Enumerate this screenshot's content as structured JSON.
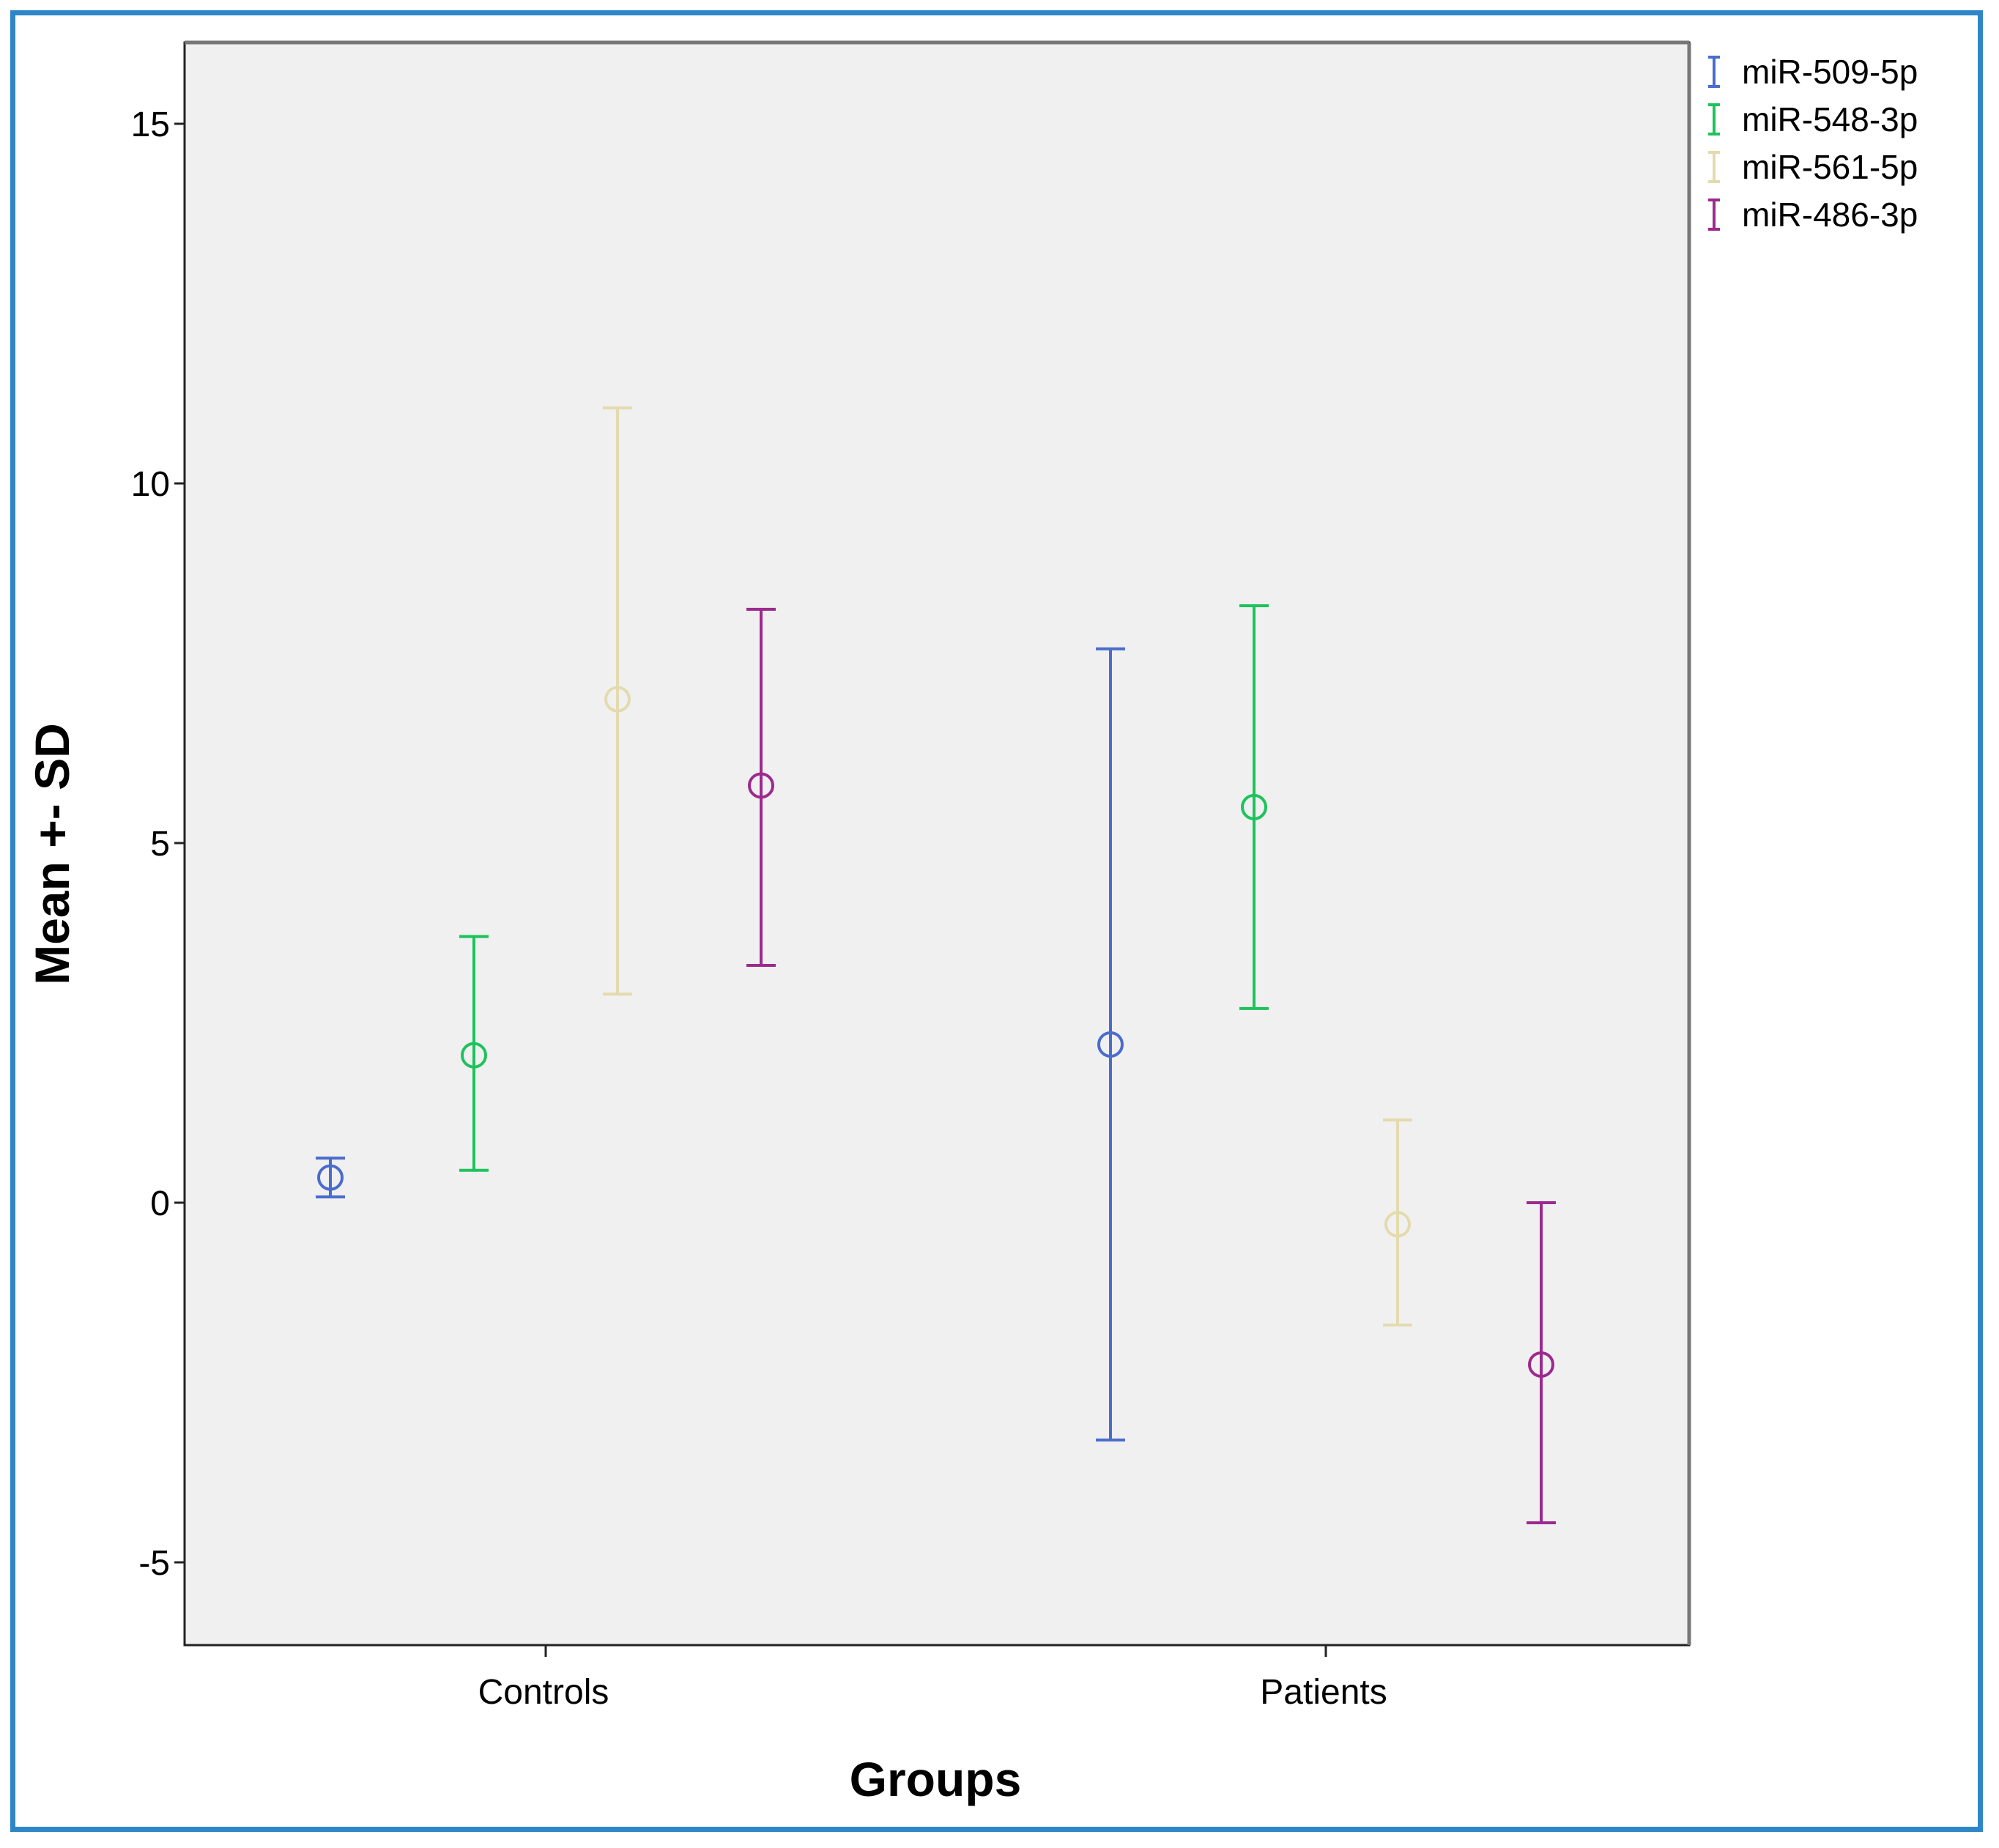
{
  "chart_data": {
    "type": "errorbar",
    "title": "",
    "xlabel": "Groups",
    "ylabel": "Mean +-  SD",
    "categories": [
      "Controls",
      "Patients"
    ],
    "yticks": [
      15,
      10,
      5,
      0,
      -5
    ],
    "ylim": [
      -6,
      16
    ],
    "grid": false,
    "legend_position": "top-right",
    "series": [
      {
        "name": "miR-509-5p",
        "color": "#4a6ccc",
        "means": [
          0.35,
          2.2
        ],
        "lower": [
          0.08,
          -3.3
        ],
        "upper": [
          0.62,
          7.7
        ]
      },
      {
        "name": "miR-548-3p",
        "color": "#1ec25c",
        "means": [
          2.05,
          5.5
        ],
        "lower": [
          0.45,
          2.7
        ],
        "upper": [
          3.7,
          8.3
        ]
      },
      {
        "name": "miR-561-5p",
        "color": "#e3dbae",
        "means": [
          7.0,
          -0.3
        ],
        "lower": [
          2.9,
          -1.7
        ],
        "upper": [
          11.05,
          1.15
        ]
      },
      {
        "name": "miR-486-3p",
        "color": "#9c2a8e",
        "means": [
          5.8,
          -2.25
        ],
        "lower": [
          3.3,
          -4.45
        ],
        "upper": [
          8.25,
          0.0
        ]
      }
    ]
  }
}
